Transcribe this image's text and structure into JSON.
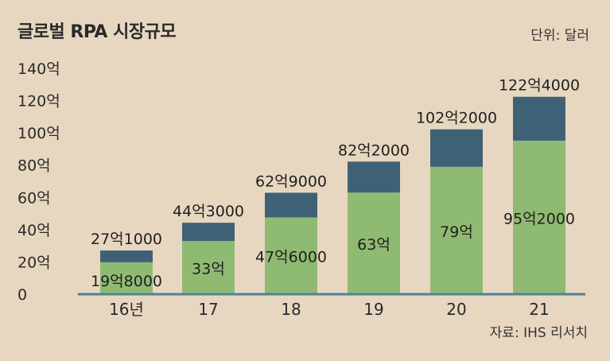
{
  "title": "글로벌 RPA  시장규모",
  "unit_label": "단위: 달러",
  "source_label": "자료: IHS 리서치",
  "colors": {
    "background": "#e8d7c0",
    "lower": "#8fba72",
    "upper": "#3f6176",
    "axis": "#4e8398"
  },
  "chart_data": {
    "type": "bar",
    "stacked": true,
    "categories": [
      "16년",
      "17",
      "18",
      "19",
      "20",
      "21"
    ],
    "y_ticks": [
      "0",
      "20억",
      "40억",
      "60억",
      "80억",
      "100억",
      "120억",
      "140억"
    ],
    "ylim": [
      0,
      140
    ],
    "series": [
      {
        "values": [
          19.8,
          33,
          47.6,
          63,
          79,
          95.2
        ],
        "labels": [
          "19억8000",
          "33억",
          "47억6000",
          "63억",
          "79억",
          "95억2000"
        ]
      },
      {
        "values": [
          7.3,
          11.3,
          15.3,
          19.2,
          23.2,
          27.2
        ]
      }
    ],
    "totals": [
      27.1,
      44.3,
      62.9,
      82.2,
      102.2,
      122.4
    ],
    "total_labels": [
      "27억1000",
      "44억3000",
      "62억9000",
      "82억2000",
      "102억2000",
      "122억4000"
    ],
    "grid": false
  }
}
